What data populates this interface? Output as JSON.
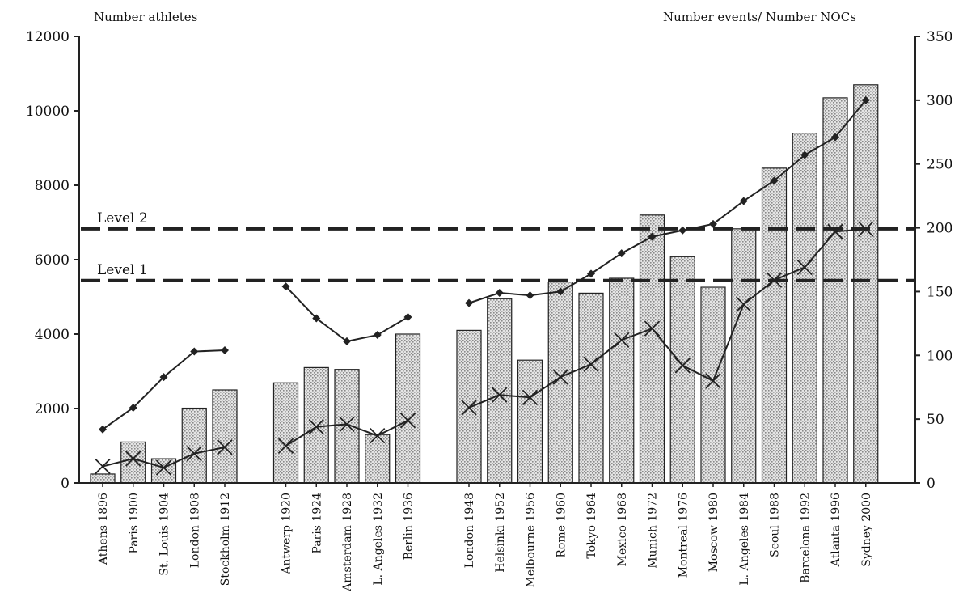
{
  "chart_data": {
    "type": "bar",
    "left_axis_title": "Number athletes",
    "right_axis_title": "Number events/ Number NOCs",
    "categories": [
      "Athens 1896",
      "Paris 1900",
      "St. Louis 1904",
      "London 1908",
      "Stockholm 1912",
      "Antwerp 1920",
      "Paris 1924",
      "Amsterdam 1928",
      "L. Angeles 1932",
      "Berlin 1936",
      "London 1948",
      "Helsinki 1952",
      "Melbourne 1956",
      "Rome 1960",
      "Tokyo 1964",
      "Mexico 1968",
      "Munich 1972",
      "Montreal 1976",
      "Moscow 1980",
      "L. Angeles 1984",
      "Seoul 1988",
      "Barcelona 1992",
      "Atlanta 1996",
      "Sydney 2000"
    ],
    "groups": [
      [
        0,
        1,
        2,
        3,
        4
      ],
      [
        5,
        6,
        7,
        8,
        9
      ],
      [
        10,
        11,
        12,
        13,
        14,
        15,
        16,
        17,
        18,
        19,
        20,
        21,
        22,
        23
      ]
    ],
    "left_ylim": [
      0,
      12000
    ],
    "left_yticks": [
      0,
      2000,
      4000,
      6000,
      8000,
      10000,
      12000
    ],
    "right_ylim": [
      0,
      350
    ],
    "right_yticks": [
      0,
      50,
      100,
      150,
      200,
      250,
      300,
      350
    ],
    "bar_series": {
      "axis": "left",
      "values": [
        240,
        1100,
        650,
        2010,
        2500,
        2690,
        3100,
        3050,
        1300,
        4000,
        4100,
        4950,
        3300,
        5400,
        5100,
        5500,
        7200,
        6080,
        5260,
        6830,
        8460,
        9400,
        10350,
        10700
      ]
    },
    "line_series": [
      {
        "marker": "diamond",
        "axis": "right",
        "values": [
          42,
          59,
          83,
          103,
          104,
          154,
          129,
          111,
          116,
          130,
          141,
          149,
          147,
          150,
          164,
          180,
          193,
          198,
          203,
          221,
          237,
          257,
          271,
          300
        ]
      },
      {
        "marker": "x",
        "axis": "right",
        "values": [
          13,
          19,
          12,
          23,
          28,
          29,
          44,
          46,
          37,
          49,
          59,
          69,
          67,
          83,
          93,
          112,
          121,
          92,
          80,
          140,
          159,
          169,
          197,
          199
        ]
      }
    ],
    "reference_lines": [
      {
        "label": "Level 2",
        "value": 6830,
        "axis": "left"
      },
      {
        "label": "Level 1",
        "value": 5440,
        "axis": "left"
      }
    ]
  }
}
